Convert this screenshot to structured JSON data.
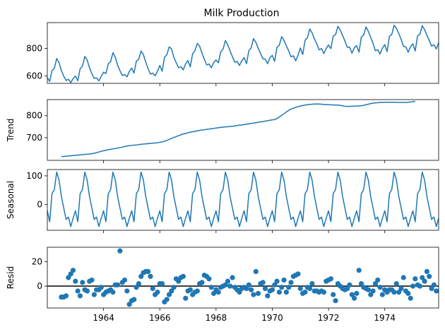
{
  "figure": {
    "title": "Milk Production",
    "x_tick_labels": [
      "1964",
      "1966",
      "1968",
      "1970",
      "1972",
      "1974"
    ],
    "line_color": "#1f77b4",
    "zero_line_color": "#000000"
  },
  "chart_data": [
    {
      "type": "line",
      "name": "observed",
      "title": "Milk Production",
      "ylabel": "",
      "x_start": "1962-01",
      "x_end": "1975-12",
      "frequency": "monthly",
      "xlim": [
        "1962-01",
        "1975-12"
      ],
      "ylim": [
        547,
        988
      ],
      "yticks": [
        600,
        800
      ],
      "grid": false,
      "values": [
        589,
        561,
        640,
        656,
        727,
        697,
        640,
        599,
        568,
        577,
        553,
        582,
        600,
        566,
        653,
        673,
        742,
        716,
        660,
        617,
        583,
        587,
        565,
        598,
        628,
        618,
        688,
        705,
        770,
        736,
        678,
        639,
        604,
        611,
        594,
        634,
        658,
        622,
        709,
        722,
        782,
        756,
        702,
        653,
        615,
        621,
        602,
        635,
        677,
        635,
        736,
        755,
        811,
        798,
        735,
        697,
        661,
        667,
        645,
        688,
        713,
        667,
        762,
        784,
        837,
        817,
        767,
        722,
        681,
        687,
        660,
        698,
        717,
        696,
        775,
        796,
        858,
        826,
        783,
        740,
        701,
        706,
        677,
        711,
        734,
        690,
        785,
        805,
        871,
        845,
        801,
        764,
        725,
        723,
        690,
        734,
        750,
        707,
        807,
        824,
        886,
        859,
        819,
        783,
        740,
        747,
        711,
        751,
        804,
        756,
        860,
        878,
        942,
        913,
        869,
        834,
        790,
        800,
        763,
        800,
        826,
        799,
        890,
        900,
        961,
        935,
        894,
        855,
        809,
        810,
        766,
        805,
        821,
        773,
        883,
        898,
        957,
        924,
        881,
        837,
        784,
        791,
        760,
        802,
        828,
        778,
        889,
        902,
        969,
        947,
        908,
        867,
        815,
        812,
        773,
        813,
        834,
        782,
        892,
        903,
        966,
        937,
        896,
        858,
        817,
        827,
        797,
        843
      ]
    },
    {
      "type": "line",
      "name": "trend",
      "ylabel": "Trend",
      "x_start": "1962-07",
      "x_end": "1975-06",
      "frequency": "monthly",
      "xlim": [
        "1962-01",
        "1975-12"
      ],
      "ylim": [
        597,
        873
      ],
      "yticks": [
        700,
        800
      ],
      "grid": false,
      "values": [
        614,
        615,
        616,
        617,
        618,
        619,
        620,
        621,
        622,
        623,
        624,
        625,
        626,
        627,
        629,
        632,
        635,
        638,
        641,
        643,
        645,
        647,
        649,
        651,
        653,
        655,
        657,
        660,
        662,
        664,
        665,
        666,
        667,
        668,
        670,
        671,
        672,
        673,
        674,
        675,
        676,
        677,
        679,
        681,
        684,
        688,
        692,
        697,
        701,
        705,
        709,
        713,
        717,
        719,
        722,
        725,
        727,
        729,
        731,
        733,
        735,
        736,
        738,
        739,
        741,
        742,
        744,
        745,
        747,
        748,
        749,
        750,
        751,
        752,
        753,
        755,
        757,
        758,
        760,
        761,
        763,
        765,
        766,
        768,
        770,
        772,
        773,
        775,
        777,
        779,
        781,
        782,
        787,
        794,
        801,
        809,
        817,
        824,
        830,
        834,
        838,
        841,
        844,
        846,
        848,
        850,
        851,
        852,
        853,
        853,
        853,
        852,
        851,
        850,
        850,
        849,
        849,
        848,
        848,
        847,
        845,
        843,
        842,
        842,
        843,
        843,
        844,
        844,
        845,
        847,
        850,
        852,
        855,
        857,
        858,
        859,
        860,
        860,
        861,
        861,
        861,
        861,
        861,
        860,
        860,
        860,
        860,
        860,
        861,
        862,
        864,
        865
      ]
    },
    {
      "type": "line",
      "name": "seasonal",
      "ylabel": "Seasonal",
      "x_start": "1962-01",
      "x_end": "1975-12",
      "frequency": "monthly",
      "period": 12,
      "xlim": [
        "1962-01",
        "1975-12"
      ],
      "ylim": [
        -90,
        122
      ],
      "yticks": [
        0,
        100
      ],
      "grid": false,
      "values": [
        -22,
        -60,
        38,
        52,
        113,
        85,
        28,
        -12,
        -52,
        -44,
        -77,
        -48
      ]
    },
    {
      "type": "scatter",
      "name": "resid",
      "ylabel": "Resid",
      "x_start": "1962-07",
      "x_end": "1975-06",
      "frequency": "monthly",
      "xlim": [
        "1962-01",
        "1975-12"
      ],
      "ylim": [
        -18,
        32
      ],
      "yticks": [
        0,
        20
      ],
      "zero_line": true,
      "grid": false,
      "values": [
        -9,
        -9,
        -8,
        7,
        10,
        13,
        4,
        -4,
        -8,
        3,
        -3,
        -4,
        4,
        5,
        -7,
        -3,
        -3,
        -1,
        -7,
        -5,
        -4,
        -3,
        -5,
        1,
        1,
        29,
        3,
        5,
        -4,
        -15,
        -12,
        -11,
        -1,
        2,
        8,
        11,
        12,
        12,
        8,
        -2,
        -7,
        -5,
        2,
        2,
        -13,
        -11,
        -7,
        -4,
        -1,
        6,
        4,
        7,
        8,
        -10,
        -4,
        -3,
        -7,
        -5,
        -4,
        2,
        3,
        9,
        8,
        6,
        -1,
        -6,
        -3,
        -5,
        -1,
        0,
        1,
        4,
        0,
        7,
        -1,
        -3,
        -5,
        -2,
        -1,
        -2,
        1,
        -3,
        -7,
        12,
        -6,
        2,
        3,
        -2,
        -8,
        -4,
        -3,
        1,
        4,
        -5,
        -1,
        5,
        -5,
        -1,
        3,
        8,
        9,
        10,
        -2,
        -6,
        -5,
        -1,
        -2,
        2,
        -4,
        -4,
        -5,
        -4,
        -5,
        4,
        5,
        6,
        -7,
        -12,
        2,
        0,
        -2,
        -3,
        -2,
        1,
        -7,
        -10,
        -6,
        13,
        2,
        -1,
        -2,
        -3,
        -7,
        -4,
        2,
        5,
        -1,
        -7,
        -3,
        -5,
        -3,
        -3,
        -5,
        2,
        -5,
        -2,
        7,
        -4,
        -6,
        -10,
        0,
        6,
        1,
        0,
        7,
        4,
        12,
        8,
        -2,
        1,
        -4
      ]
    }
  ]
}
